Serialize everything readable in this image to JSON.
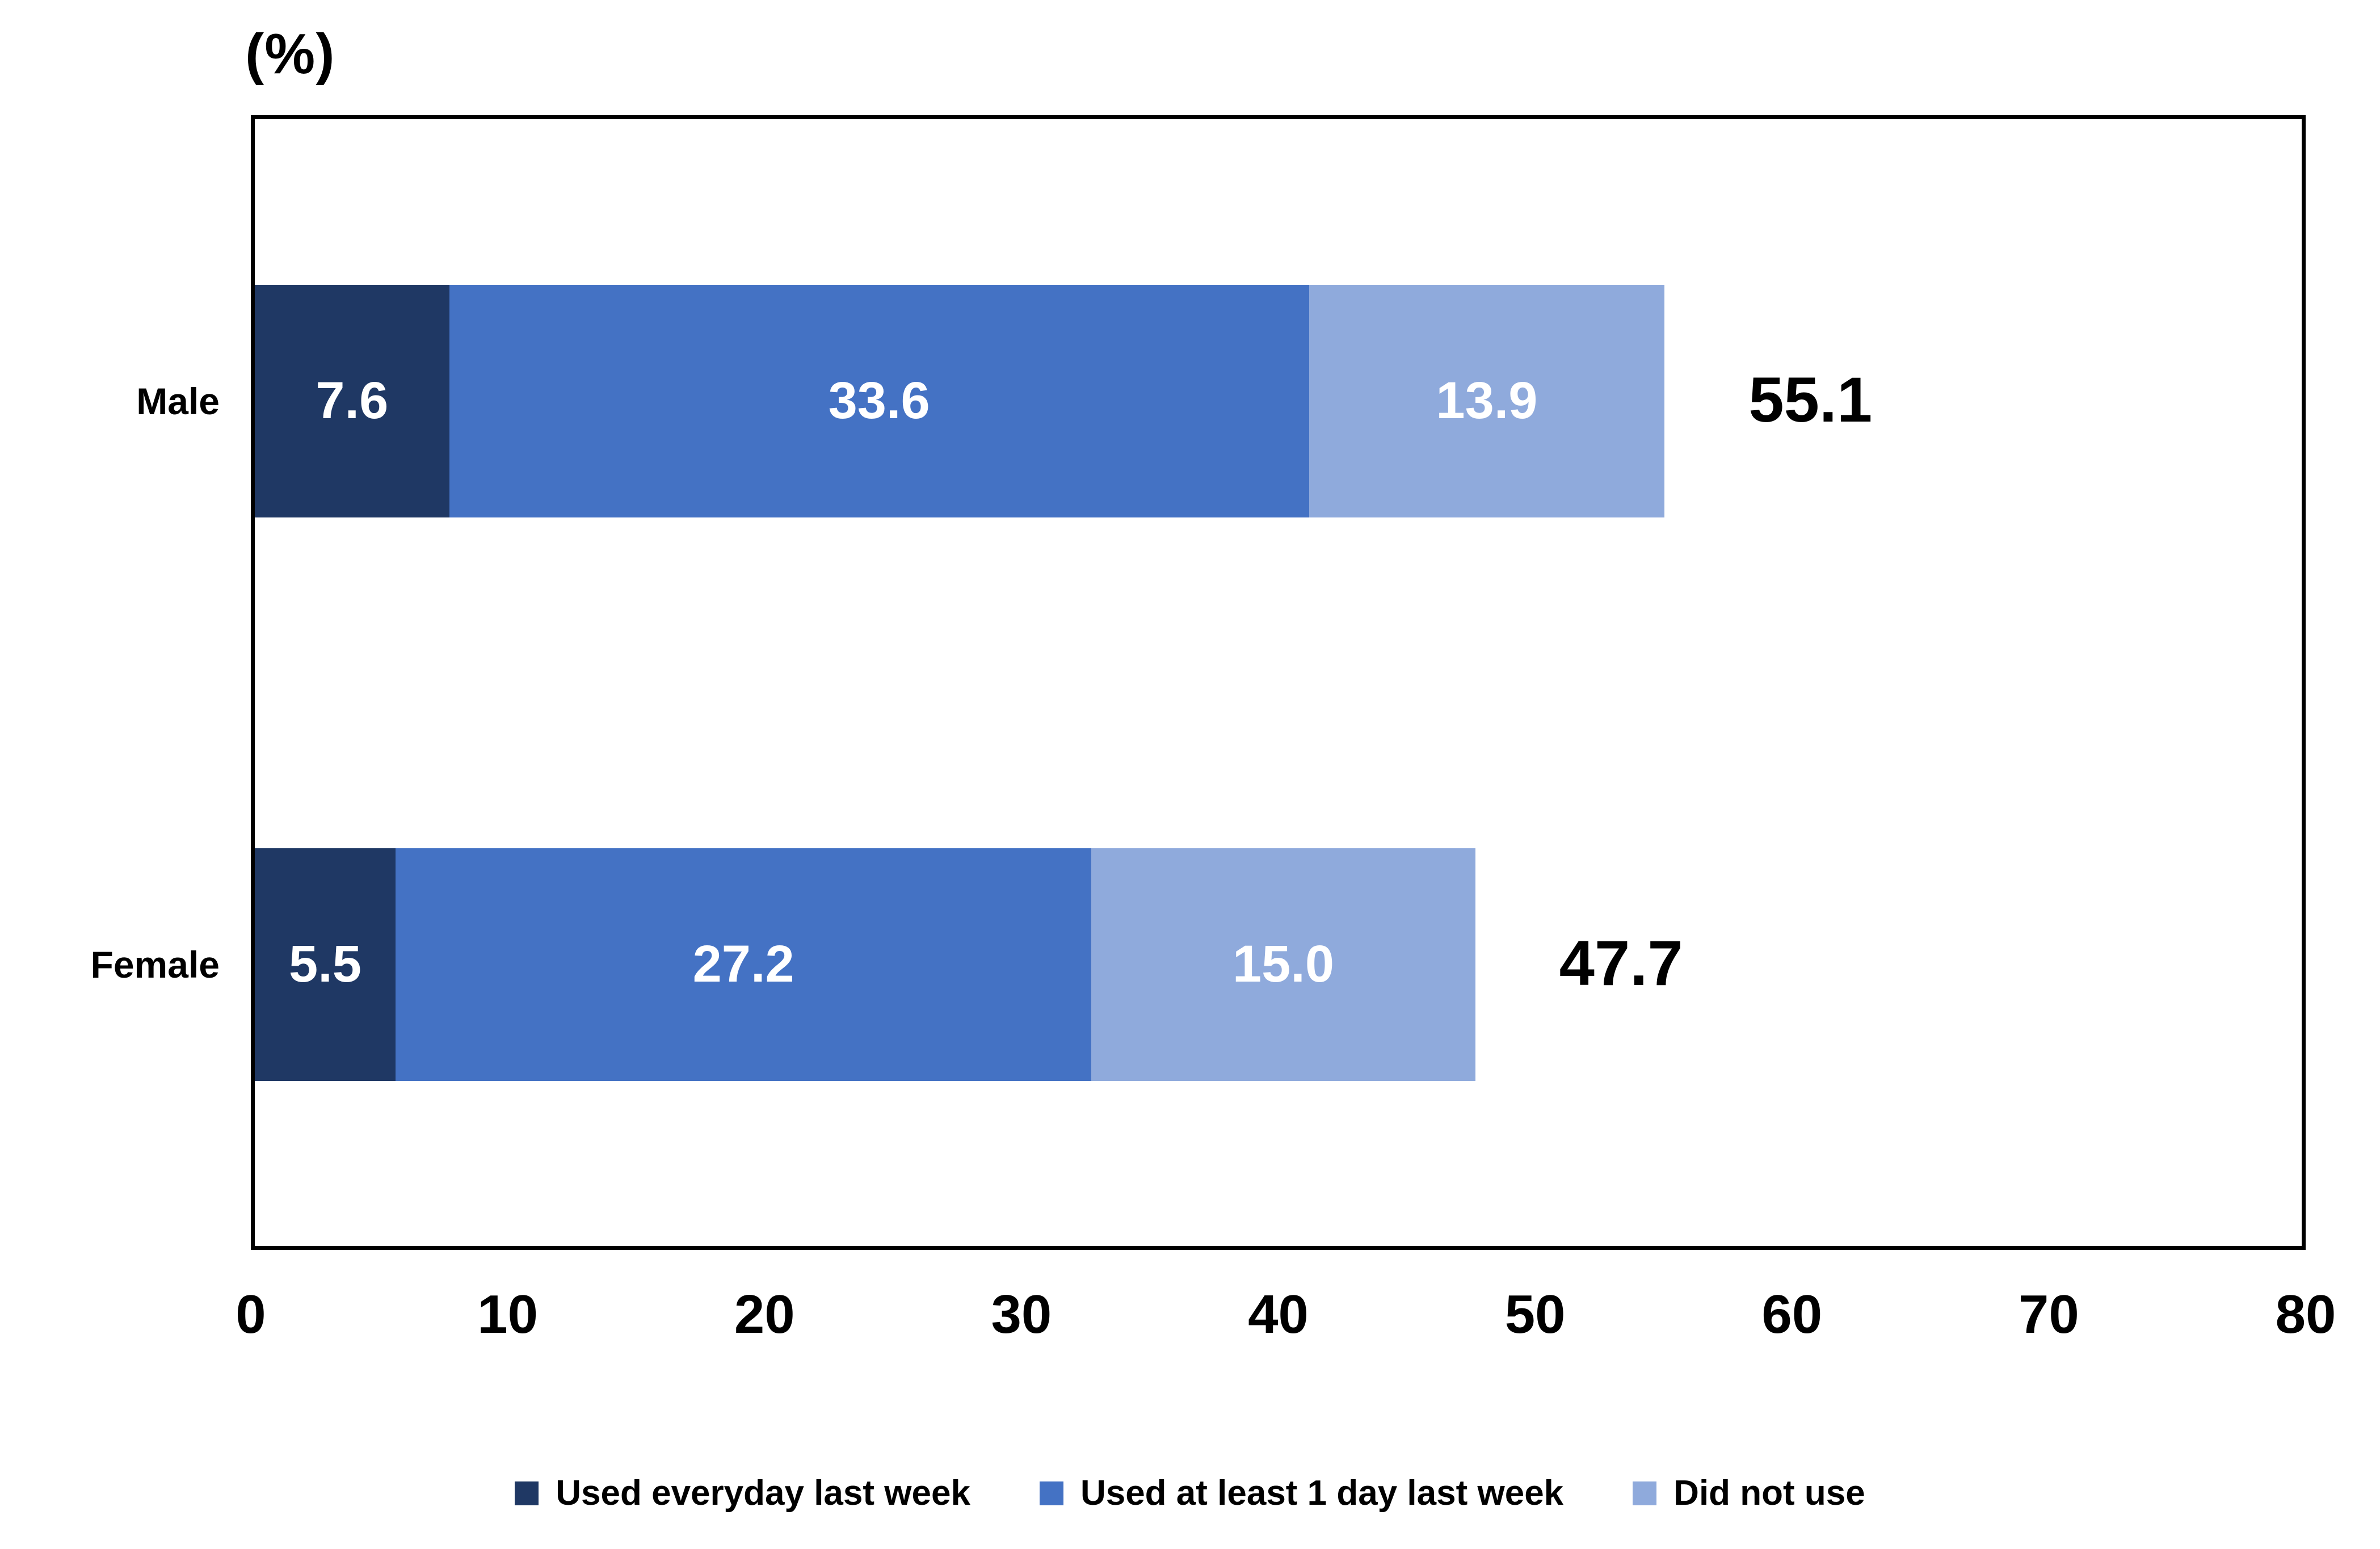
{
  "chart": {
    "unit_label": "(%)"
  },
  "chart_data": {
    "type": "bar",
    "orientation": "horizontal",
    "stacked": true,
    "title": "",
    "xlabel": "",
    "ylabel": "(%)",
    "categories": [
      "Male",
      "Female"
    ],
    "series": [
      {
        "name": "Used everyday last week",
        "color": "#1F3864",
        "values": [
          7.6,
          5.5
        ],
        "value_labels": [
          "7.6",
          "5.5"
        ]
      },
      {
        "name": "Used at least 1 day last week",
        "color": "#4472C4",
        "values": [
          33.6,
          27.2
        ],
        "value_labels": [
          "33.6",
          "27.2"
        ]
      },
      {
        "name": "Did not use",
        "color": "#8FAADC",
        "values": [
          13.9,
          15.0
        ],
        "value_labels": [
          "13.9",
          "15.0"
        ]
      }
    ],
    "totals": [
      55.1,
      47.7
    ],
    "total_labels": [
      "55.1",
      "47.7"
    ],
    "x_axis": {
      "min": 0,
      "max": 80,
      "tick_values": [
        0,
        10,
        20,
        30,
        40,
        50,
        60,
        70,
        80
      ],
      "tick_labels": [
        "0",
        "10",
        "20",
        "30",
        "40",
        "50",
        "60",
        "70",
        "80"
      ]
    },
    "legend_position": "bottom",
    "grid": false,
    "value_label_color": "#FFFFFF",
    "text_color": "#000000",
    "plot_border_color": "#000000"
  }
}
